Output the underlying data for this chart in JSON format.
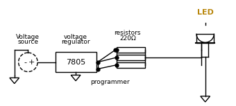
{
  "bg_color": "#ffffff",
  "line_color": "#000000",
  "led_label_color": "#b8860b",
  "text_color": "#000000",
  "figsize": [
    3.4,
    1.53
  ],
  "dpi": 100,
  "labels": {
    "voltage_source_line1": "Voltage",
    "voltage_source_line2": "source",
    "voltage_regulator_line1": "voltage",
    "voltage_regulator_line2": "regulator",
    "regulator_id": "7805",
    "resistors_line1": "resistors",
    "resistors_line2": "220Ω",
    "programmer": "programmer",
    "led": "LED"
  }
}
